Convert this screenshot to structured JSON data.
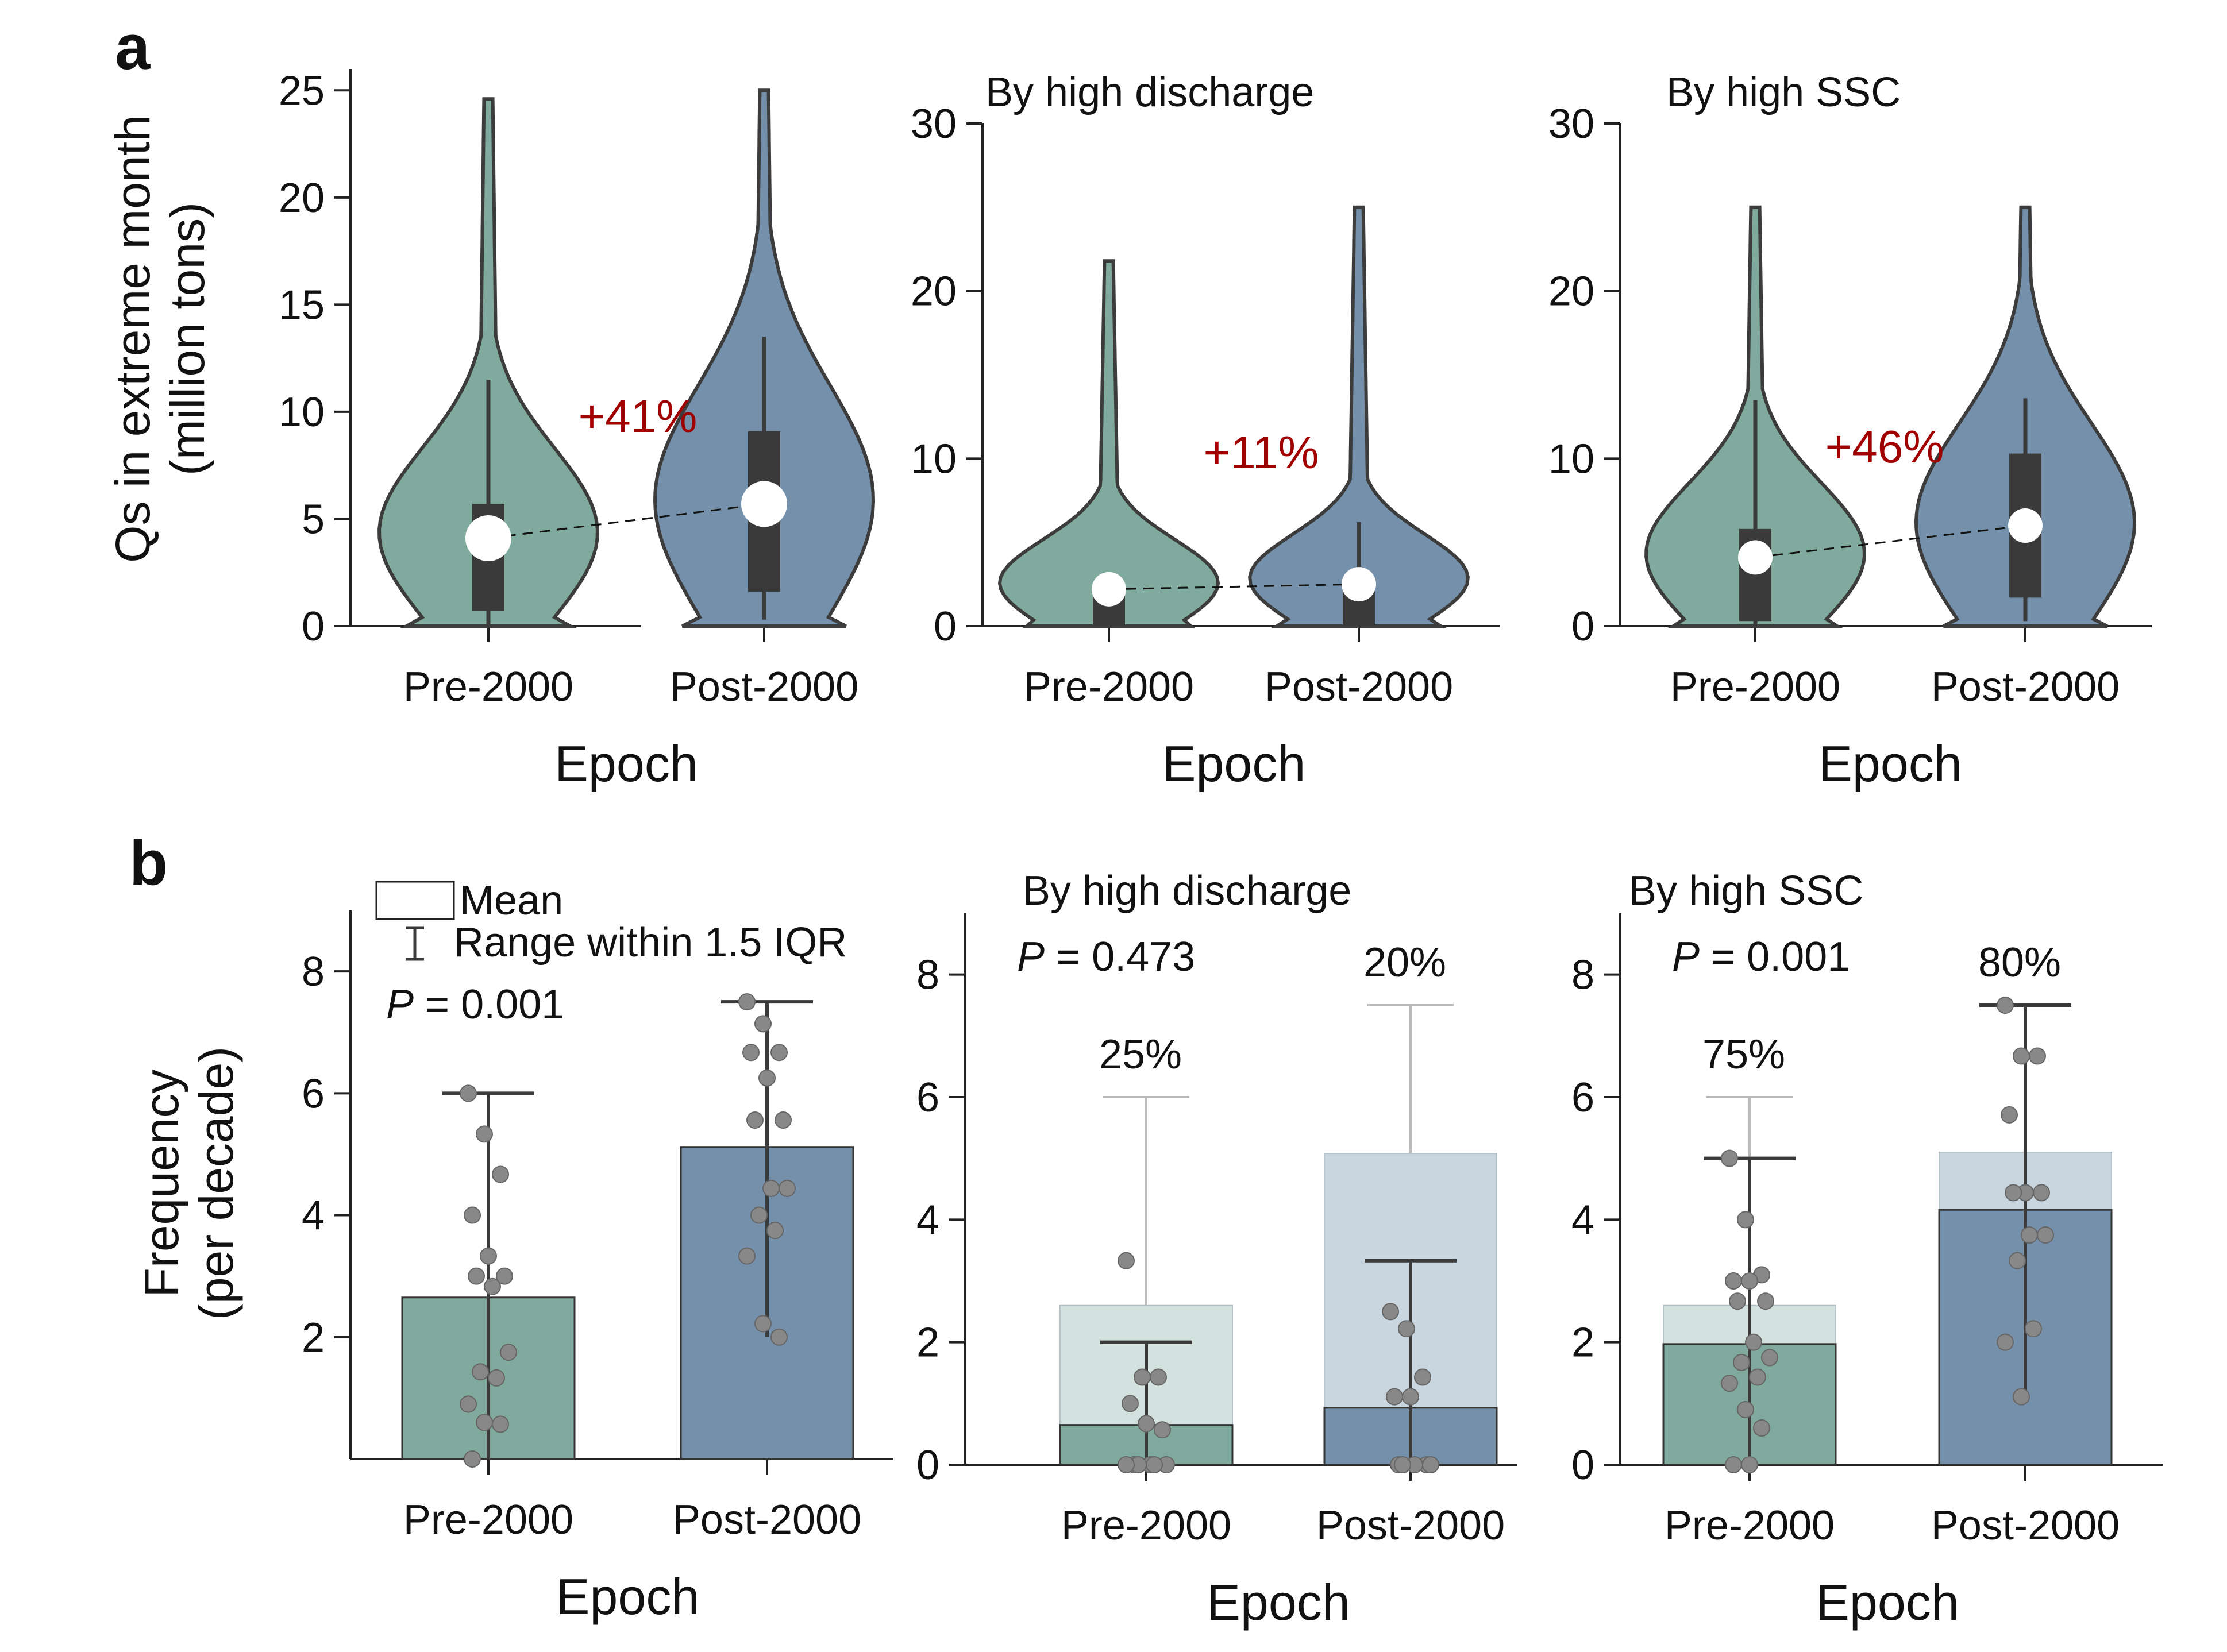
{
  "panel_labels": [
    "a",
    "b"
  ],
  "colors": {
    "pre": "#7faa9d",
    "post": "#7590aa",
    "pre_light": "#d3e2de",
    "post_light": "#c9d6e0",
    "outline": "#3c3c3c",
    "box": "#3a3a3a",
    "accent": "#a00000",
    "point": "#888888"
  },
  "chart_data": [
    {
      "type": "violin",
      "panel": "a",
      "title": "",
      "xlabel": "Epoch",
      "ylabel": "Qs in extreme month\n(million tons)",
      "categories": [
        "Pre-2000",
        "Post-2000"
      ],
      "ylim": [
        0,
        26
      ],
      "yticks": [
        0,
        5,
        10,
        15,
        20,
        25
      ],
      "median": [
        4.1,
        5.7
      ],
      "q1": [
        0.7,
        1.6
      ],
      "q3": [
        5.7,
        9.1
      ],
      "whisker_low": [
        0,
        0.3
      ],
      "whisker_high": [
        11.5,
        13.5
      ],
      "max": [
        24.6,
        25
      ],
      "change_label": "+41%"
    },
    {
      "type": "violin",
      "panel": "a",
      "title": "By high discharge",
      "xlabel": "Epoch",
      "ylabel": "",
      "categories": [
        "Pre-2000",
        "Post-2000"
      ],
      "ylim": [
        0,
        30
      ],
      "yticks": [
        0,
        10,
        20,
        30
      ],
      "median": [
        2.2,
        2.5
      ],
      "q1": [
        0,
        0
      ],
      "q3": [
        2.5,
        2.6
      ],
      "whisker_low": [
        0,
        0
      ],
      "whisker_high": [
        2.5,
        6.2
      ],
      "max": [
        21.8,
        25
      ],
      "change_label": "+11%"
    },
    {
      "type": "violin",
      "panel": "a",
      "title": "By high SSC",
      "xlabel": "Epoch",
      "ylabel": "",
      "categories": [
        "Pre-2000",
        "Post-2000"
      ],
      "ylim": [
        0,
        30
      ],
      "yticks": [
        0,
        10,
        20,
        30
      ],
      "median": [
        4.1,
        6.0
      ],
      "q1": [
        0.3,
        1.7
      ],
      "q3": [
        5.8,
        10.3
      ],
      "whisker_low": [
        0,
        0.3
      ],
      "whisker_high": [
        13.5,
        13.6
      ],
      "max": [
        25,
        25
      ],
      "change_label": "+46%"
    },
    {
      "type": "bar",
      "panel": "b",
      "title": "",
      "xlabel": "Epoch",
      "ylabel": "Frequency\n(per decade)",
      "categories": [
        "Pre-2000",
        "Post-2000"
      ],
      "ylim": [
        0,
        9
      ],
      "yticks": [
        2,
        4,
        6,
        8
      ],
      "means": [
        2.65,
        5.12
      ],
      "whisker_low": [
        0,
        2.0
      ],
      "whisker_high": [
        6.0,
        7.5
      ],
      "points": [
        [
          6.0,
          5.33,
          4.67,
          4.0,
          3.33,
          3.0,
          3.0,
          2.83,
          1.75,
          1.43,
          1.33,
          0.9,
          0.6,
          0.57,
          0.0
        ],
        [
          7.5,
          7.14,
          6.67,
          6.67,
          6.25,
          5.56,
          5.56,
          4.44,
          4.44,
          4.0,
          3.75,
          3.33,
          2.22,
          2.0
        ]
      ],
      "p_value_label": "P",
      "p_value": "= 0.001",
      "legend": {
        "mean_label": "Mean",
        "range_label": "Range within 1.5 IQR"
      }
    },
    {
      "type": "bar",
      "panel": "b",
      "title": "By high discharge",
      "xlabel": "Epoch",
      "ylabel": "",
      "categories": [
        "Pre-2000",
        "Post-2000"
      ],
      "ylim": [
        0,
        9
      ],
      "yticks": [
        0,
        2,
        4,
        6,
        8
      ],
      "total_means": [
        2.6,
        5.08
      ],
      "means": [
        0.65,
        0.93
      ],
      "whisker_low": [
        0,
        0
      ],
      "whisker_high": [
        2.0,
        3.33
      ],
      "total_whisker_high": [
        6.0,
        7.5
      ],
      "points": [
        [
          3.33,
          1.43,
          1.43,
          1.0,
          0.67,
          0.57,
          0.0,
          0.0,
          0.0,
          0.0,
          0.0,
          0.0
        ],
        [
          2.5,
          2.22,
          1.43,
          1.11,
          1.11,
          0.0,
          0.0,
          0.0,
          0.0,
          0.0
        ]
      ],
      "percent_labels": [
        "25%",
        "20%"
      ],
      "p_value_label": "P",
      "p_value": "= 0.473"
    },
    {
      "type": "bar",
      "panel": "b",
      "title": "By high SSC",
      "xlabel": "Epoch",
      "ylabel": "",
      "categories": [
        "Pre-2000",
        "Post-2000"
      ],
      "ylim": [
        0,
        9
      ],
      "yticks": [
        0,
        2,
        4,
        6,
        8
      ],
      "total_means": [
        2.6,
        5.1
      ],
      "means": [
        1.97,
        4.16
      ],
      "whisker_low": [
        0,
        1.11
      ],
      "whisker_high": [
        5.0,
        7.5
      ],
      "total_whisker_high": [
        6.0,
        7.5
      ],
      "points": [
        [
          5.0,
          4.0,
          3.1,
          3.0,
          3.0,
          2.67,
          2.67,
          2.0,
          1.75,
          1.67,
          1.43,
          1.33,
          0.9,
          0.6,
          0.0,
          0.0
        ],
        [
          7.5,
          6.67,
          6.67,
          5.71,
          4.44,
          4.44,
          4.44,
          3.75,
          3.75,
          3.33,
          2.22,
          2.0,
          1.11
        ]
      ],
      "percent_labels": [
        "75%",
        "80%"
      ],
      "p_value_label": "P",
      "p_value": "= 0.001"
    }
  ]
}
